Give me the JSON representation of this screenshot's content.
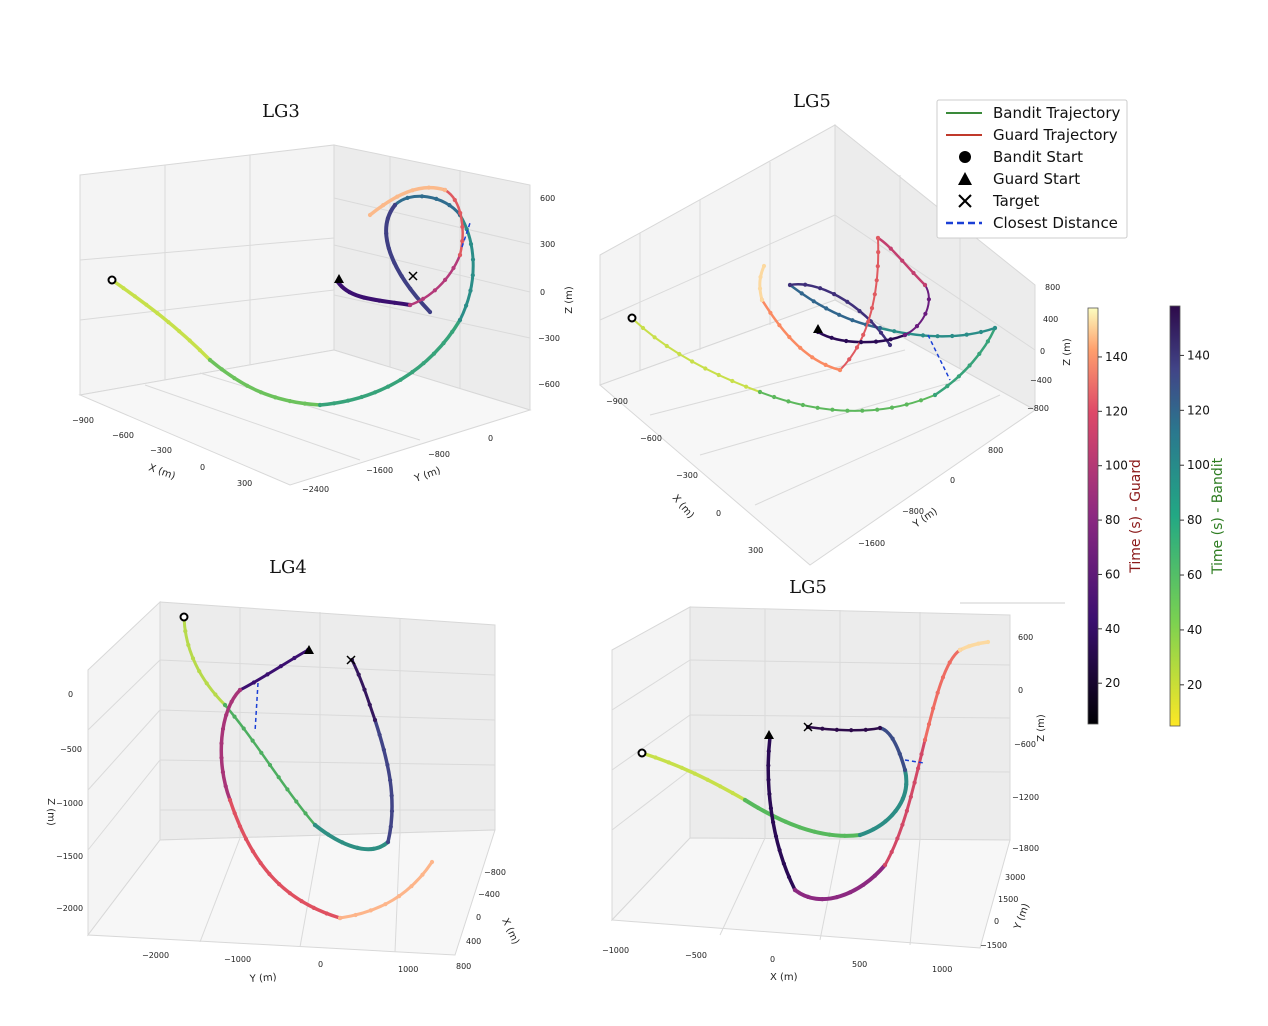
{
  "chart_data": [
    {
      "type": "line3d",
      "title": "LG3",
      "xlabel": "X (m)",
      "ylabel": "Y (m)",
      "zlabel": "Z (m)",
      "x_ticks": [
        "−900",
        "−600",
        "−300",
        "0",
        "300"
      ],
      "y_ticks": [
        "−2400",
        "−1600",
        "−800",
        "0"
      ],
      "z_ticks": [
        "600",
        "300",
        "0",
        "−300",
        "−600"
      ]
    },
    {
      "type": "line3d",
      "title": "LG5",
      "xlabel": "X (m)",
      "ylabel": "Y (m)",
      "zlabel": "Z (m)",
      "x_ticks": [
        "−900",
        "−600",
        "−300",
        "0",
        "300"
      ],
      "y_ticks": [
        "−1600",
        "−800",
        "0",
        "800"
      ],
      "z_ticks": [
        "800",
        "400",
        "0",
        "−400",
        "−800"
      ]
    },
    {
      "type": "line3d",
      "title": "LG4",
      "xlabel": "X (m)",
      "ylabel": "Y (m)",
      "zlabel": "Z (m)",
      "x_ticks": [
        "−800",
        "−400",
        "0",
        "400",
        "800"
      ],
      "y_ticks": [
        "−2000",
        "−1000",
        "0",
        "1000"
      ],
      "z_ticks": [
        "0",
        "−500",
        "−1000",
        "−1500",
        "−2000"
      ]
    },
    {
      "type": "line3d",
      "title": "LG5",
      "xlabel": "X (m)",
      "ylabel": "Y (m)",
      "zlabel": "Z (m)",
      "x_ticks": [
        "−1000",
        "−500",
        "0",
        "500",
        "1000"
      ],
      "y_ticks": [
        "3000",
        "1500",
        "0",
        "−1500"
      ],
      "z_ticks": [
        "600",
        "0",
        "−600",
        "−1200",
        "−1800"
      ]
    }
  ],
  "legend": {
    "items": [
      {
        "label": "Bandit Trajectory",
        "marker": "line",
        "color": "#3a8a3a"
      },
      {
        "label": "Guard Trajectory",
        "marker": "line",
        "color": "#c0392b"
      },
      {
        "label": "Bandit Start",
        "marker": "circle",
        "color": "#000000"
      },
      {
        "label": "Guard Start",
        "marker": "triangle",
        "color": "#000000"
      },
      {
        "label": "Target",
        "marker": "x",
        "color": "#000000"
      },
      {
        "label": "Closest Distance",
        "marker": "dashed",
        "color": "#1a3fd6"
      }
    ]
  },
  "colorbars": {
    "guard": {
      "label": "Time (s) - Guard",
      "label_color": "#8b1a1a",
      "ticks": [
        "140",
        "120",
        "100",
        "80",
        "60",
        "40",
        "20"
      ],
      "range": [
        5,
        158
      ]
    },
    "bandit": {
      "label": "Time (s) - Bandit",
      "label_color": "#2e7d22",
      "ticks": [
        "140",
        "120",
        "100",
        "80",
        "60",
        "40",
        "20"
      ],
      "range": [
        5,
        158
      ]
    }
  }
}
